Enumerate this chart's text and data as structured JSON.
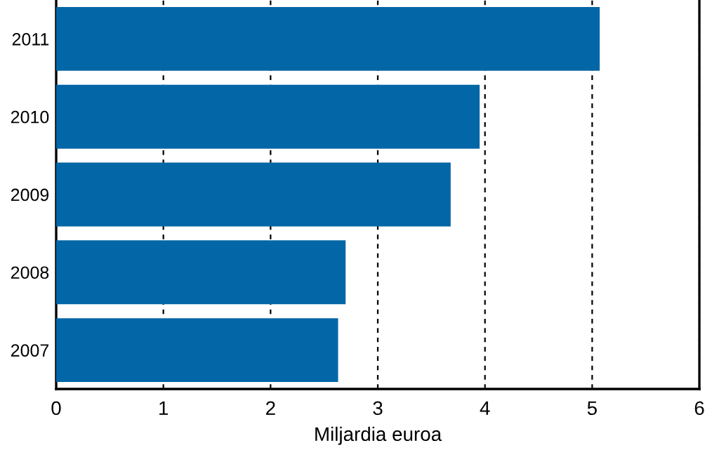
{
  "chart_data": {
    "type": "bar",
    "orientation": "horizontal",
    "xlabel": "Miljardia euroa",
    "categories": [
      "2011",
      "2010",
      "2009",
      "2008",
      "2007"
    ],
    "values": [
      5.07,
      3.95,
      3.68,
      2.7,
      2.63
    ],
    "color": "#0366a6",
    "xlim": [
      0,
      6
    ],
    "xticks": [
      0,
      1,
      2,
      3,
      4,
      5,
      6
    ],
    "grid": "x"
  }
}
